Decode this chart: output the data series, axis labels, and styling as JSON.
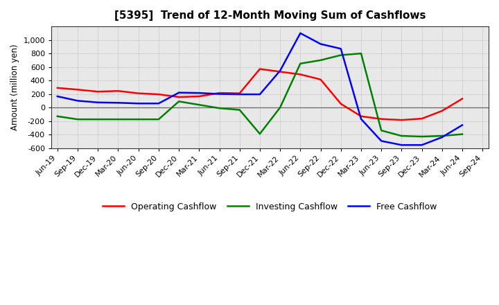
{
  "title": "[5395]  Trend of 12-Month Moving Sum of Cashflows",
  "ylabel": "Amount (million yen)",
  "background_color": "#ffffff",
  "plot_bg_color": "#e8e8e8",
  "grid_color": "#999999",
  "ylim": [
    -600,
    1200
  ],
  "yticks": [
    -600,
    -400,
    -200,
    0,
    200,
    400,
    600,
    800,
    1000
  ],
  "x_labels": [
    "Jun-19",
    "Sep-19",
    "Dec-19",
    "Mar-20",
    "Jun-20",
    "Sep-20",
    "Dec-20",
    "Mar-21",
    "Jun-21",
    "Sep-21",
    "Dec-21",
    "Mar-22",
    "Jun-22",
    "Sep-22",
    "Dec-22",
    "Mar-23",
    "Jun-23",
    "Sep-23",
    "Dec-23",
    "Mar-24",
    "Jun-24",
    "Sep-24"
  ],
  "operating": [
    290,
    265,
    235,
    245,
    210,
    195,
    155,
    165,
    215,
    210,
    570,
    530,
    490,
    415,
    55,
    -130,
    -170,
    -185,
    -165,
    -50,
    130,
    null
  ],
  "investing": [
    -130,
    -175,
    -175,
    -175,
    -175,
    -175,
    90,
    40,
    -10,
    -35,
    -390,
    0,
    650,
    700,
    775,
    800,
    -340,
    -420,
    -430,
    -420,
    -395,
    null
  ],
  "free": [
    165,
    100,
    75,
    70,
    60,
    60,
    220,
    215,
    200,
    195,
    195,
    545,
    1100,
    940,
    870,
    -170,
    -495,
    -555,
    -555,
    -440,
    -260,
    null
  ],
  "line_colors": {
    "operating": "#ff0000",
    "investing": "#008000",
    "free": "#0000ff"
  },
  "line_width": 1.8,
  "legend_labels": [
    "Operating Cashflow",
    "Investing Cashflow",
    "Free Cashflow"
  ]
}
